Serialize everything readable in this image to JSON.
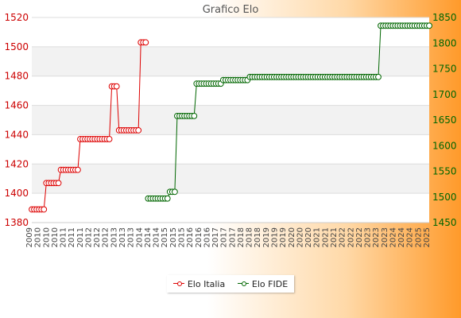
{
  "chart_data": {
    "type": "line",
    "title": "Grafico Elo",
    "x_index": [
      0,
      1,
      2,
      3,
      4,
      5,
      6,
      7,
      8,
      9,
      10,
      11,
      12,
      13,
      14,
      15,
      16,
      17,
      18,
      19,
      20,
      21,
      22,
      23,
      24,
      25,
      26,
      27,
      28,
      29,
      30,
      31,
      32,
      33,
      34,
      35,
      36,
      37,
      38,
      39,
      40,
      41,
      42,
      43,
      44,
      45,
      46,
      47,
      48,
      49,
      50,
      51,
      52,
      53,
      54,
      55,
      56,
      57,
      58,
      59,
      60,
      61,
      62,
      63,
      64,
      65,
      66,
      67,
      68,
      69,
      70,
      71,
      72,
      73,
      74,
      75,
      76,
      77,
      78,
      79,
      80,
      81,
      82,
      83,
      84,
      85,
      86,
      87,
      88,
      89,
      90,
      91,
      92,
      93,
      94,
      95,
      96,
      97,
      98,
      99,
      100,
      101,
      102,
      103,
      104,
      105,
      106,
      107,
      108,
      109,
      110,
      111,
      112,
      113,
      114,
      115,
      116,
      117,
      118,
      119,
      120,
      121,
      122,
      123,
      124,
      125,
      126,
      127,
      128,
      129,
      130,
      131,
      132,
      133,
      134,
      135,
      136,
      137,
      138,
      139,
      140,
      141,
      142,
      143,
      144,
      145,
      146,
      147,
      148,
      149,
      150,
      151,
      152,
      153,
      154,
      155,
      156,
      157,
      158,
      159,
      160,
      161,
      162,
      163,
      164
    ],
    "x_tick_labels": [
      "2009",
      "2010",
      "2010",
      "2010",
      "2011",
      "2011",
      "2011",
      "2012",
      "2012",
      "2012",
      "2013",
      "2013",
      "2013",
      "2014",
      "2014",
      "2014",
      "2015",
      "2015",
      "2015",
      "2016",
      "2016",
      "2016",
      "2017",
      "2017",
      "2017",
      "2018",
      "2018",
      "2018",
      "2019",
      "2019",
      "2019",
      "2020",
      "2020",
      "2020",
      "2021",
      "2021",
      "2021",
      "2022",
      "2022",
      "2022",
      "2023",
      "2023",
      "2023",
      "2024",
      "2024",
      "2024",
      "2025",
      "2025"
    ],
    "y_left_range": [
      1380,
      1520
    ],
    "y_left_ticks": [
      1380,
      1400,
      1420,
      1440,
      1460,
      1480,
      1500,
      1520
    ],
    "y_right_range": [
      1450,
      1850
    ],
    "y_right_ticks": [
      1450,
      1500,
      1550,
      1600,
      1650,
      1700,
      1750,
      1800,
      1850
    ],
    "grid": "horizontal bands",
    "legend_position": "bottom-center",
    "series": [
      {
        "name": "Elo Italia",
        "axis": "left",
        "color": "#dd0000",
        "segments": [
          {
            "from": 0,
            "to": 5,
            "value": 1389
          },
          {
            "from": 6,
            "to": 11,
            "value": 1407
          },
          {
            "from": 12,
            "to": 19,
            "value": 1416
          },
          {
            "from": 20,
            "to": 32,
            "value": 1437
          },
          {
            "from": 33,
            "to": 35,
            "value": 1473
          },
          {
            "from": 36,
            "to": 44,
            "value": 1443
          },
          {
            "from": 45,
            "to": 47,
            "value": 1503
          }
        ]
      },
      {
        "name": "Elo FIDE",
        "axis": "right",
        "color": "#006600",
        "segments": [
          {
            "from": 48,
            "to": 56,
            "value": 1497
          },
          {
            "from": 57,
            "to": 59,
            "value": 1510
          },
          {
            "from": 60,
            "to": 67,
            "value": 1658
          },
          {
            "from": 68,
            "to": 78,
            "value": 1721
          },
          {
            "from": 79,
            "to": 89,
            "value": 1728
          },
          {
            "from": 90,
            "to": 143,
            "value": 1734
          },
          {
            "from": 144,
            "to": 164,
            "value": 1834
          }
        ]
      }
    ]
  }
}
